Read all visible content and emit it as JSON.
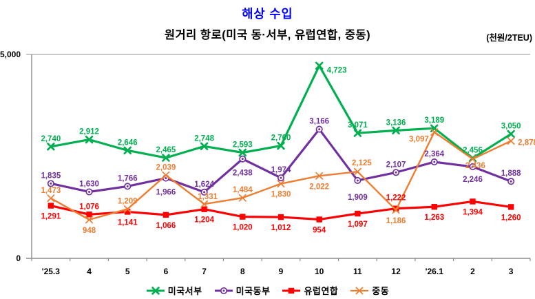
{
  "header": {
    "title": "해상 수입",
    "subtitle": "원거리 항로(미국 동·서부, 유럽연합, 중동)",
    "unit": "(천원/2TEU)"
  },
  "chart_data": {
    "type": "line",
    "title": "해상 수입",
    "subtitle": "원거리 항로(미국 동·서부, 유럽연합, 중동)",
    "unit": "(천원/2TEU)",
    "categories": [
      "'25.3",
      "4",
      "5",
      "6",
      "7",
      "8",
      "9",
      "10",
      "11",
      "12",
      "'26.1",
      "2",
      "3"
    ],
    "ylim": [
      0,
      5000
    ],
    "yticks": [
      0,
      5000
    ],
    "ytick_labels": [
      "0",
      "5,000"
    ],
    "grid": "horizontal line at max (5,000) only",
    "legend_position": "bottom",
    "axis_color": "#8c8c8c",
    "series": [
      {
        "name": "미국서부",
        "key": "us-west",
        "color": "#00B050",
        "marker": "x-bold",
        "values": [
          2740,
          2912,
          2646,
          2465,
          2748,
          2593,
          2760,
          4723,
          3071,
          3136,
          3189,
          2456,
          3050
        ]
      },
      {
        "name": "미국동부",
        "key": "us-east",
        "color": "#7030A0",
        "marker": "circle-dot",
        "values": [
          1835,
          1630,
          1766,
          1966,
          1624,
          2438,
          1974,
          3166,
          1909,
          2107,
          2364,
          2246,
          1888
        ]
      },
      {
        "name": "유럽연합",
        "key": "eu",
        "color": "#FF0000",
        "marker": "square",
        "values": [
          1291,
          1076,
          1141,
          1066,
          1204,
          1020,
          1012,
          954,
          1097,
          1222,
          1263,
          1394,
          1260
        ]
      },
      {
        "name": "중동",
        "key": "middle-east",
        "color": "#ED7D31",
        "marker": "x-thin",
        "values": [
          1473,
          948,
          1209,
          2039,
          1331,
          1484,
          1830,
          2022,
          2125,
          1186,
          3097,
          2436,
          2878
        ]
      }
    ]
  }
}
